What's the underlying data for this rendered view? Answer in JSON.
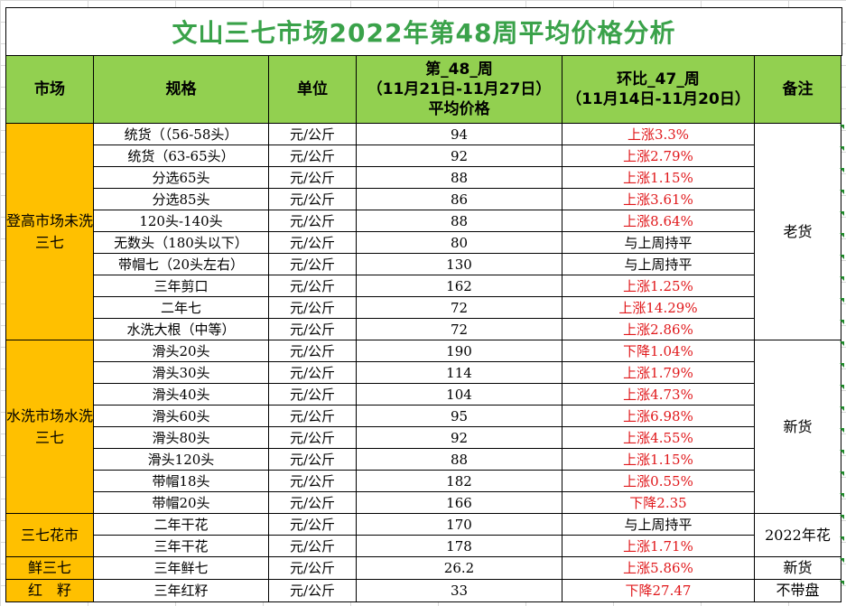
{
  "title": "文山三七市场2022年第48周平均价格分析",
  "headers": {
    "market": "市场",
    "spec": "规格",
    "unit": "单位",
    "week_line1": "第_48_周",
    "week_line2": "（11月21日-11月27日）",
    "week_line3": "平均价格",
    "mom_line1": "环比_47_周",
    "mom_line2": "（11月14日-11月20日）",
    "note": "备注"
  },
  "groups": [
    {
      "market": "登高市场未洗三七",
      "note": "老货",
      "rows": 10
    },
    {
      "market": "水洗市场水洗三七",
      "note": "新货",
      "rows": 8
    },
    {
      "market": "三七花市",
      "note": "2022年花",
      "rows": 2
    },
    {
      "market": "鲜三七",
      "note": "新货",
      "rows": 1
    },
    {
      "market": "红　籽",
      "note": "不带盘",
      "rows": 1
    }
  ],
  "rows": [
    {
      "spec": "统货（（56-58头）",
      "unit": "元/公斤",
      "price": "94",
      "change": "上涨3.3%",
      "trend": "up"
    },
    {
      "spec": "统货（63-65头）",
      "unit": "元/公斤",
      "price": "92",
      "change": "上涨2.79%",
      "trend": "up"
    },
    {
      "spec": "分选65头",
      "unit": "元/公斤",
      "price": "88",
      "change": "上涨1.15%",
      "trend": "up"
    },
    {
      "spec": "分选85头",
      "unit": "元/公斤",
      "price": "86",
      "change": "上涨3.61%",
      "trend": "up"
    },
    {
      "spec": "120头-140头",
      "unit": "元/公斤",
      "price": "88",
      "change": "上涨8.64%",
      "trend": "up"
    },
    {
      "spec": "无数头（180头以下）",
      "unit": "元/公斤",
      "price": "80",
      "change": "与上周持平",
      "trend": "flat"
    },
    {
      "spec": "带帽七（20头左右）",
      "unit": "元/公斤",
      "price": "130",
      "change": "与上周持平",
      "trend": "flat"
    },
    {
      "spec": "三年剪口",
      "unit": "元/公斤",
      "price": "162",
      "change": "上涨1.25%",
      "trend": "up"
    },
    {
      "spec": "二年七",
      "unit": "元/公斤",
      "price": "72",
      "change": "上涨14.29%",
      "trend": "up"
    },
    {
      "spec": "水洗大根（中等）",
      "unit": "元/公斤",
      "price": "72",
      "change": "上涨2.86%",
      "trend": "up"
    },
    {
      "spec": "滑头20头",
      "unit": "元/公斤",
      "price": "190",
      "change": "下降1.04%",
      "trend": "down"
    },
    {
      "spec": "滑头30头",
      "unit": "元/公斤",
      "price": "114",
      "change": "上涨1.79%",
      "trend": "up"
    },
    {
      "spec": "滑头40头",
      "unit": "元/公斤",
      "price": "104",
      "change": "上涨4.73%",
      "trend": "up"
    },
    {
      "spec": "滑头60头",
      "unit": "元/公斤",
      "price": "95",
      "change": "上涨6.98%",
      "trend": "up"
    },
    {
      "spec": "滑头80头",
      "unit": "元/公斤",
      "price": "92",
      "change": "上涨4.55%",
      "trend": "up"
    },
    {
      "spec": "滑头120头",
      "unit": "元/公斤",
      "price": "88",
      "change": "上涨1.15%",
      "trend": "up"
    },
    {
      "spec": "带帽18头",
      "unit": "元/公斤",
      "price": "182",
      "change": "上涨0.55%",
      "trend": "up"
    },
    {
      "spec": "带帽20头",
      "unit": "元/公斤",
      "price": "166",
      "change": "下降2.35",
      "trend": "down"
    },
    {
      "spec": "二年干花",
      "unit": "元/公斤",
      "price": "170",
      "change": "与上周持平",
      "trend": "flat"
    },
    {
      "spec": "三年干花",
      "unit": "元/公斤",
      "price": "178",
      "change": "上涨1.71%",
      "trend": "up"
    },
    {
      "spec": "三年鲜七",
      "unit": "元/公斤",
      "price": "26.2",
      "change": "上涨5.86%",
      "trend": "up"
    },
    {
      "spec": "三年红籽",
      "unit": "元/公斤",
      "price": "33",
      "change": "下降27.47",
      "trend": "down"
    }
  ],
  "colors": {
    "title_text": "#3aa24a",
    "header_bg": "#92d050",
    "market_bg": "#ffc000",
    "change_red": "#e0181b"
  }
}
